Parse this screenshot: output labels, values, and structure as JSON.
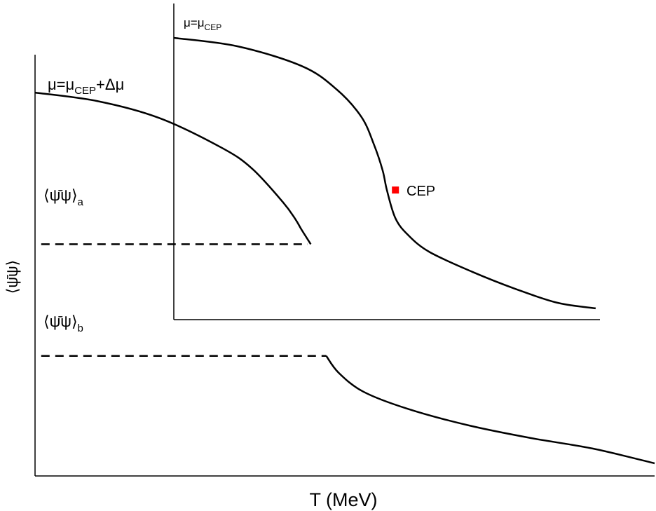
{
  "chart_data": [
    {
      "type": "line",
      "panel": "outer",
      "xlabel": "T (MeV)",
      "ylabel": "⟨ψ̄ψ⟩",
      "xlim": [
        0,
        1
      ],
      "ylim": [
        0,
        1
      ],
      "grid": false,
      "series": [
        {
          "name": "μ=μCEP+Δμ",
          "style": "solid",
          "x": [
            0.0,
            0.1,
            0.2,
            0.3,
            0.35,
            0.4,
            0.42,
            0.43,
            0.445
          ],
          "y": [
            0.91,
            0.89,
            0.85,
            0.78,
            0.73,
            0.65,
            0.61,
            0.585,
            0.55
          ]
        },
        {
          "name": "⟨ψ̄ψ⟩a",
          "style": "dashed",
          "x": [
            0.01,
            0.44
          ],
          "y": [
            0.55,
            0.55
          ]
        },
        {
          "name": "⟨ψ̄ψ⟩b",
          "style": "dashed",
          "x": [
            0.01,
            0.47
          ],
          "y": [
            0.285,
            0.285
          ]
        },
        {
          "name": "",
          "style": "solid",
          "x": [
            0.47,
            0.49,
            0.53,
            0.6,
            0.7,
            0.8,
            0.9,
            1.0
          ],
          "y": [
            0.285,
            0.245,
            0.2,
            0.16,
            0.12,
            0.09,
            0.065,
            0.03
          ]
        }
      ],
      "annotations": [
        {
          "text": "μ=μ",
          "sub": "CEP",
          "tail": "+Δμ"
        },
        {
          "text": "⟨ψ̄ψ⟩",
          "sub": "a"
        },
        {
          "text": "⟨ψ̄ψ⟩",
          "sub": "b"
        }
      ]
    },
    {
      "type": "line",
      "panel": "inset",
      "xlim": [
        0,
        1
      ],
      "ylim": [
        0,
        1
      ],
      "grid": false,
      "series": [
        {
          "name": "μ=μCEP",
          "style": "solid",
          "x": [
            0.0,
            0.15,
            0.3,
            0.38,
            0.44,
            0.47,
            0.49,
            0.5,
            0.52,
            0.55,
            0.6,
            0.7,
            0.8,
            0.9,
            0.99
          ],
          "y": [
            1.0,
            0.97,
            0.9,
            0.82,
            0.72,
            0.62,
            0.53,
            0.46,
            0.36,
            0.3,
            0.24,
            0.17,
            0.11,
            0.06,
            0.04
          ]
        }
      ],
      "points": [
        {
          "label": "CEP",
          "x": 0.52,
          "y": 0.46,
          "color": "#ff0000"
        }
      ],
      "annotations": [
        {
          "text": "μ=μ",
          "sub": "CEP"
        }
      ]
    }
  ]
}
